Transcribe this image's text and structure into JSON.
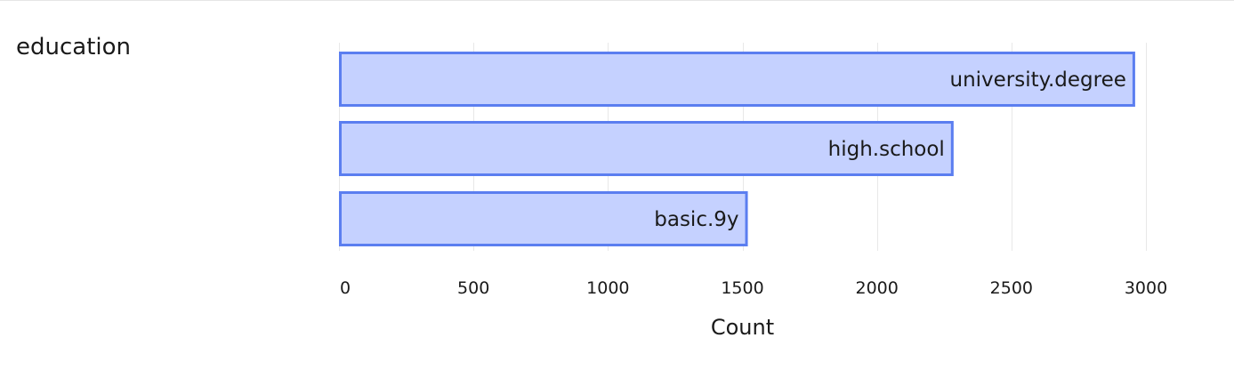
{
  "field_name": "education",
  "colors": {
    "bar_fill": "#c5d1ff",
    "bar_stroke": "#5b7ef0",
    "grid": "#e8e8e8"
  },
  "chart_data": {
    "type": "bar",
    "orientation": "horizontal",
    "categories": [
      "university.degree",
      "high.school",
      "basic.9y"
    ],
    "values": [
      2960,
      2285,
      1520
    ],
    "xlabel": "Count",
    "ylabel": "",
    "xlim": [
      0,
      3000
    ],
    "x_ticks": [
      0,
      500,
      1000,
      1500,
      2000,
      2500,
      3000
    ],
    "grid": true,
    "labels_inside_bars": true
  }
}
